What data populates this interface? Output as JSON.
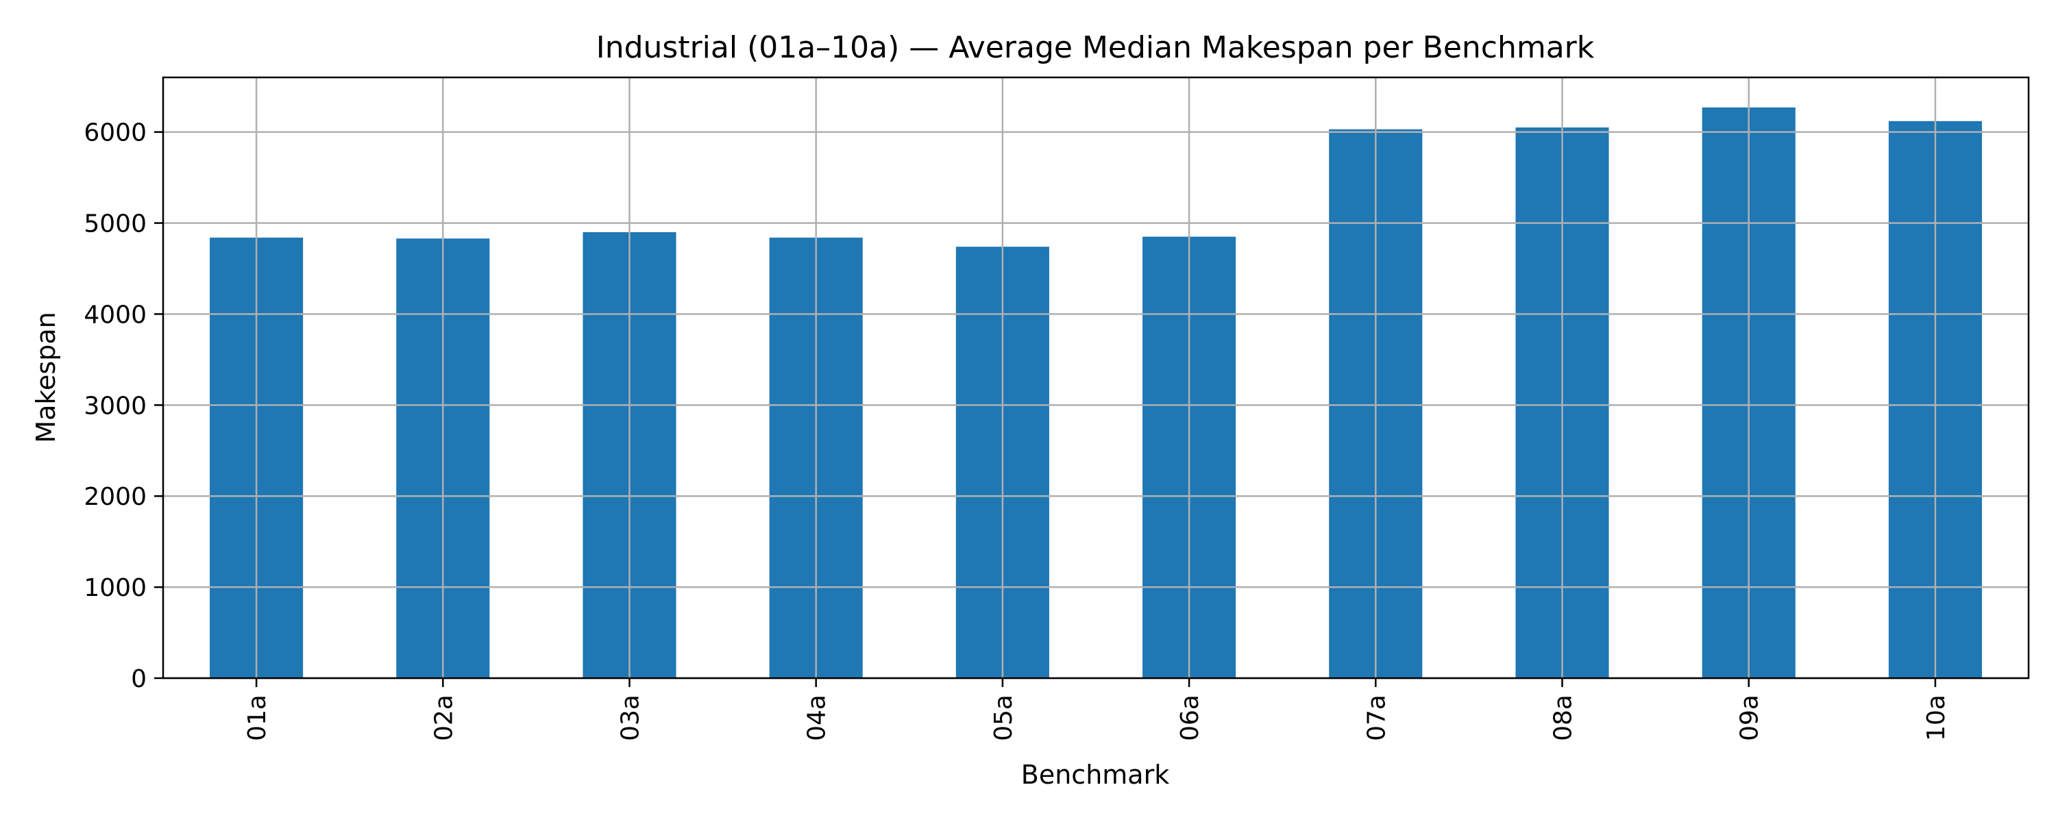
{
  "chart_data": {
    "type": "bar",
    "title": "Industrial (01a–10a) — Average Median Makespan per Benchmark",
    "xlabel": "Benchmark",
    "ylabel": "Makespan",
    "categories": [
      "01a",
      "02a",
      "03a",
      "04a",
      "05a",
      "06a",
      "07a",
      "08a",
      "09a",
      "10a"
    ],
    "values": [
      4840,
      4830,
      4900,
      4840,
      4740,
      4850,
      6030,
      6050,
      6270,
      6120
    ],
    "ylim": [
      0,
      6600
    ],
    "yticks": [
      0,
      1000,
      2000,
      3000,
      4000,
      5000,
      6000
    ],
    "grid": true,
    "bar_color": "#1f77b4",
    "grid_color": "#b0b0b0",
    "xtick_rotation": "vertical"
  }
}
